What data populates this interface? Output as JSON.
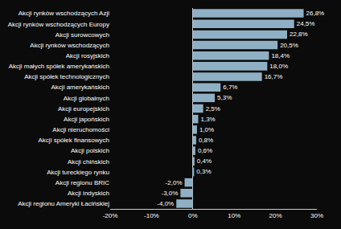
{
  "chart_data": {
    "type": "bar",
    "orientation": "horizontal",
    "categories": [
      "Akcji rynków wschodzących Azji",
      "Akcji rynków wschodzących Europy",
      "Akcji surowcowych",
      "Akcji rynków wschodzących",
      "Akcji rosyjskich",
      "Akcji małych spółek amerykańskich",
      "Akcji spółek technologicznych",
      "Akcji amerykańskich",
      "Akcji globalnych",
      "Akcji europejskich",
      "Akcji japońskich",
      "Akcji nieruchomości",
      "Akcji spółek finansowych",
      "Akcji polskich",
      "Akcji chińskich",
      "Akcji tureckiego rynku",
      "Akcji regionu BRIC",
      "Akcji indyskich",
      "Akcji regionu Ameryki Łacińskiej"
    ],
    "values": [
      26.8,
      24.5,
      22.8,
      20.5,
      18.4,
      18.0,
      16.7,
      6.7,
      5.3,
      2.5,
      1.3,
      1.0,
      0.8,
      0.6,
      0.4,
      0.3,
      -2.0,
      -3.0,
      -4.0
    ],
    "value_labels": [
      "26,8%",
      "24,5%",
      "22,8%",
      "20,5%",
      "18,4%",
      "18,0%",
      "16,7%",
      "6,7%",
      "5,3%",
      "2,5%",
      "1,3%",
      "1,0%",
      "0,8%",
      "0,6%",
      "0,4%",
      "0,3%",
      "-2,0%",
      "-3,0%",
      "-4,0%"
    ],
    "data_labels": true,
    "color": "#8fb0c4",
    "xlim": [
      -20,
      30
    ],
    "xticks": [
      {
        "value": -20,
        "label": "-20%"
      },
      {
        "value": -10,
        "label": "-10%"
      },
      {
        "value": 0,
        "label": "0%"
      },
      {
        "value": 10,
        "label": "10%"
      },
      {
        "value": 20,
        "label": "20%"
      },
      {
        "value": 30,
        "label": "30%"
      }
    ],
    "grid": false
  }
}
